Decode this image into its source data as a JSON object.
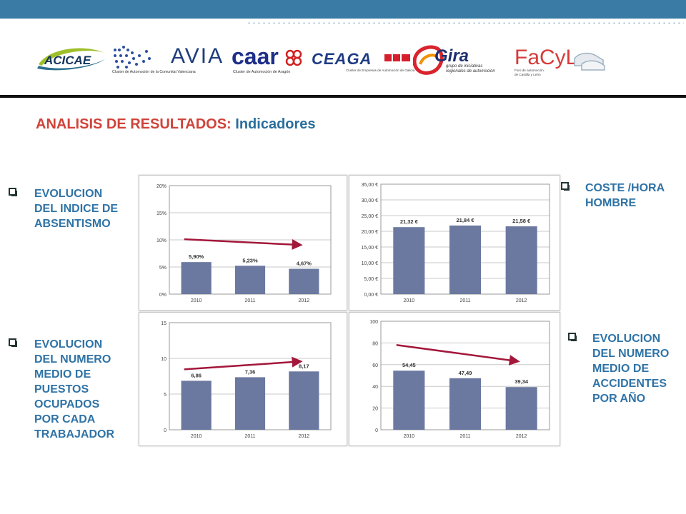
{
  "slide": {
    "title_part1": "ANALISIS DE RESULTADOS: ",
    "title_part2": "Indicadores",
    "colors": {
      "top_bar": "#3a7ba5",
      "title_red": "#d0433a",
      "title_blue": "#2a6e9c",
      "label_blue": "#2f73a6",
      "bar": "#6b78a0",
      "arrow": "#a3173a"
    }
  },
  "logos": {
    "acicae": "ACICAE",
    "avia": "AVIA",
    "avia_sub": "Cluster de Automoción de la Comunitat Valenciana",
    "caar": "caar",
    "caar_sub": "Cluster de Automoción de Aragón",
    "ceaga": "CEAGA",
    "ceaga_sub": "Cluster de Empresas de Automoción de Galicia",
    "gira": "Gira",
    "gira_sub1": "grupo de iniciativas",
    "gira_sub2": "regionales de automoción",
    "facyl": "FaCyL",
    "facyl_sub1": "Foro de automoción",
    "facyl_sub2": "de Castilla y León"
  },
  "labels": {
    "absentismo": [
      "EVOLUCION",
      "DEL INDICE DE",
      "ABSENTISMO"
    ],
    "coste": [
      "COSTE /HORA",
      "HOMBRE"
    ],
    "puestos": [
      "EVOLUCION",
      "DEL NUMERO",
      "MEDIO DE",
      "PUESTOS",
      "OCUPADOS",
      "POR CADA",
      "TRABAJADOR"
    ],
    "accidentes": [
      "EVOLUCION",
      "DEL NUMERO",
      "MEDIO DE",
      "ACCIDENTES",
      "POR AÑO"
    ]
  },
  "chart_data": [
    {
      "type": "bar",
      "categories": [
        "2010",
        "2011",
        "2012"
      ],
      "values": [
        5.9,
        5.23,
        4.67
      ],
      "data_labels": [
        "5,90%",
        "5,23%",
        "4,67%"
      ],
      "yticks": [
        "0%",
        "5%",
        "10%",
        "15%",
        "20%"
      ],
      "ylim": [
        0,
        20
      ],
      "grid": true,
      "trend_arrow": "down"
    },
    {
      "type": "bar",
      "categories": [
        "2010",
        "2011",
        "2012"
      ],
      "values": [
        21.32,
        21.84,
        21.58
      ],
      "data_labels": [
        "21,32 €",
        "21,84 €",
        "21,58 €"
      ],
      "yticks": [
        "0,00 €",
        "5,00 €",
        "10,00 €",
        "15,00 €",
        "20,00 €",
        "25,00 €",
        "30,00 €",
        "35,00 €"
      ],
      "ylim": [
        0,
        35
      ],
      "grid": true
    },
    {
      "type": "bar",
      "categories": [
        "2010",
        "2011",
        "2012"
      ],
      "values": [
        6.86,
        7.36,
        8.17
      ],
      "data_labels": [
        "6,86",
        "7,36",
        "8,17"
      ],
      "yticks": [
        "0",
        "5",
        "10",
        "15"
      ],
      "ylim": [
        0,
        15
      ],
      "grid": true,
      "trend_arrow": "up"
    },
    {
      "type": "bar",
      "categories": [
        "2010",
        "2011",
        "2012"
      ],
      "values": [
        54.45,
        47.49,
        39.34
      ],
      "data_labels": [
        "54,45",
        "47,49",
        "39,34"
      ],
      "yticks": [
        "0",
        "20",
        "40",
        "60",
        "80",
        "100"
      ],
      "ylim": [
        0,
        100
      ],
      "grid": true,
      "trend_arrow": "down"
    }
  ]
}
